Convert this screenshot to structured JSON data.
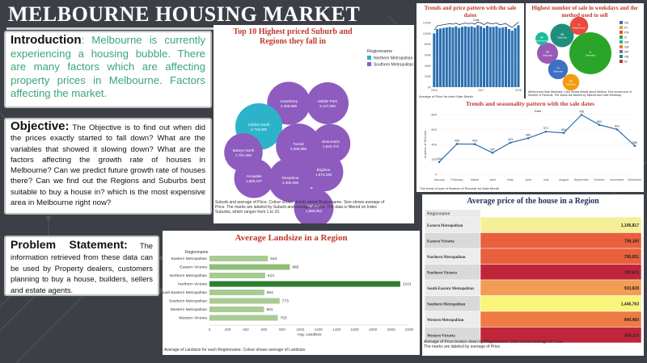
{
  "page": {
    "title": "MELBOURNE HOUSING MARKET",
    "introduction": {
      "heading": "Introduction",
      "text": ": Melbourne is currently experiencing a housing bubble. There are many factors which are affecting property prices in Melbourne. Factors affecting the market."
    },
    "objective": {
      "heading": "Objective:",
      "text": " The Objective is to find out when did the prices exactly started to fall down? What are the variables that showed it slowing down? What are the factors affecting the growth rate of houses in Melbourne? Can we predict future growth rate of houses there? Can we find out the Regions and Suburbs best suitable to buy a house in? which is the most expensive area in Melbourne right now?"
    },
    "problem": {
      "heading": "Problem Statement:",
      "text": " The information retrieved from these data can be used by Property dealers, customers planning to buy a house, builders, sellers and estate agents."
    }
  },
  "colors": {
    "background": "#3c4046",
    "blue": "#2b6fb0",
    "purple": "#8e5bbf",
    "teal": "#2cb3c9",
    "green_dark": "#2e7d32",
    "green_light": "#a4c88e"
  },
  "chart_data": [
    {
      "id": "suburbs",
      "type": "bubble",
      "title": "Top 10 Highest priced Suburb and Regions they fall in",
      "legend_title": "Regionname",
      "legend": [
        {
          "name": "Northern Metropolitan",
          "color": "#2cb3c9"
        },
        {
          "name": "Southern Metropolitan",
          "color": "#8e5bbf"
        }
      ],
      "bubbles": [
        {
          "suburb": "Canterbury",
          "value": "2,268,695",
          "region": "Southern Metropolitan"
        },
        {
          "suburb": "Middle Park",
          "value": "2,147,500",
          "region": "Southern Metropolitan"
        },
        {
          "suburb": "Carlton North",
          "value": "2,719,000",
          "region": "Northern Metropolitan"
        },
        {
          "suburb": "Toorak",
          "value": "2,485,996",
          "region": "Southern Metropolitan"
        },
        {
          "suburb": "Beaumaris",
          "value": "1,842,472",
          "region": "Southern Metropolitan"
        },
        {
          "suburb": "Balwyn North",
          "value": "1,767,266",
          "region": "Southern Metropolitan"
        },
        {
          "suburb": "Armadale",
          "value": "1,880,327",
          "region": "Southern Metropolitan"
        },
        {
          "suburb": "Deepdene",
          "value": "2,380,000",
          "region": "Southern Metropolitan"
        },
        {
          "suburb": "Brighton",
          "value": "1,874,338",
          "region": "Southern Metropolitan"
        },
        {
          "suburb": "Malvern",
          "value": "1,869,053",
          "region": "Southern Metropolitan"
        }
      ],
      "footnote": "Suburb and average of Price. Colour shows details about Regionname. Size shows average of Price. The marks are labeled by Suburb and average of Price. The data is filtered on Index Suburbs, which ranges from 1 to 10."
    },
    {
      "id": "trend",
      "type": "bar+line",
      "title": "Trends and price pattern with the sale dates",
      "legend_label": "Date",
      "x": [
        "2016",
        "",
        "",
        "",
        "",
        "",
        "",
        "",
        "",
        "",
        "",
        "",
        "",
        "",
        "",
        "2017",
        "",
        "",
        "",
        "",
        "",
        "",
        "",
        "",
        "",
        "",
        "",
        "2018"
      ],
      "values": [
        1000000,
        1080000,
        1090000,
        1100000,
        1110000,
        1120000,
        1110000,
        1130000,
        1100000,
        1120000,
        1130000,
        1120000,
        1130000,
        1110000,
        1150000,
        1130000,
        1100000,
        1140000,
        1120000,
        1120000,
        1130000,
        1100000,
        1110000,
        1120000,
        1080000,
        1050000,
        1100000,
        1150000
      ],
      "ylim": [
        0,
        1200000
      ],
      "yticks": [
        "1200K",
        "1000K",
        "800K",
        "600K",
        "400K",
        "200K",
        "0K"
      ],
      "footnote": "Average of Price for each Date Month."
    },
    {
      "id": "weekdays",
      "type": "bubble",
      "title": "Highest number of sale in weekdays and the method used to sell",
      "bubbles": [
        {
          "label": "S",
          "sub": "Saturday",
          "color": "#2aa52a",
          "n": 16000
        },
        {
          "label": "VB",
          "sub": "Saturday",
          "color": "#1e8f7a",
          "n": 5000
        },
        {
          "label": "SP",
          "sub": "Saturday",
          "color": "#9b59b6",
          "n": 4000
        },
        {
          "label": "PI",
          "sub": "Saturday",
          "color": "#3d6fc4",
          "n": 3500
        },
        {
          "label": "SP",
          "sub": "Saturday",
          "color": "#f39c12",
          "n": 2500
        },
        {
          "label": "S",
          "sub": "Wednesday",
          "color": "#e74c3c",
          "n": 3000
        },
        {
          "label": "SP",
          "sub": "Wednesday",
          "color": "#1abc9c",
          "n": 1500
        }
      ],
      "legend": [
        "SS",
        "PI",
        "PN",
        "S",
        "SA",
        "SN",
        "SP",
        "VB",
        "W"
      ],
      "footnote": "Method and Date Weekday. Color shows details about Method. Size shows sum of Number of Records. The marks are labeled by Method and Date Weekday."
    },
    {
      "id": "seasonality",
      "type": "line",
      "title": "Trends and seasonality pattern with the sale dates",
      "legend_label": "Date",
      "categories": [
        "January",
        "February",
        "March",
        "April",
        "May",
        "June",
        "July",
        "August",
        "September",
        "October",
        "November",
        "December"
      ],
      "values": [
        164,
        406,
        403,
        287,
        423,
        483,
        571,
        554,
        796,
        662,
        601,
        380
      ],
      "ylabel": "Number of Records",
      "ylim": [
        0,
        800
      ],
      "yticks": [
        "800",
        "600",
        "400",
        "200",
        "0"
      ],
      "footnote": "The trend of sum of Number of Records for Date Month."
    },
    {
      "id": "landsize",
      "type": "bar",
      "orientation": "horizontal",
      "title": "Average Landsize in a Region",
      "ylabel": "Regionname",
      "xlabel": "Avg. Landsize",
      "categories": [
        "Eastern Metropolitan",
        "Eastern Victoria",
        "Northern Metropolitan",
        "Northern Victoria",
        "South-Eastern Metropolitan",
        "Southern Metropolitan",
        "Western Metropolitan",
        "Western Victoria"
      ],
      "values": [
        644,
        885,
        614,
        2101,
        604,
        773,
        601,
        753
      ],
      "xlim": [
        0,
        2200
      ],
      "xticks": [
        "0",
        "200",
        "400",
        "600",
        "800",
        "1000",
        "1200",
        "1400",
        "1600",
        "1800",
        "2000",
        "2200"
      ],
      "footnote": "Average of Landsize for each Regionname. Colour shows average of Landsize."
    },
    {
      "id": "avgprice",
      "type": "table",
      "title": "Average price of the house in a Region",
      "header": "Regionname",
      "rows": [
        {
          "region": "Eastern Metropolitan",
          "value": "1,106,817",
          "color": "#f6ef9a"
        },
        {
          "region": "Eastern Victoria",
          "value": "798,160",
          "color": "#e8603c"
        },
        {
          "region": "Northern Metropolitan",
          "value": "795,051",
          "color": "#e8603c"
        },
        {
          "region": "Northern Victoria",
          "value": "707,671",
          "color": "#c0263a"
        },
        {
          "region": "South-Eastern Metropolitan",
          "value": "933,828",
          "color": "#f39c55"
        },
        {
          "region": "Southern Metropolitan",
          "value": "1,446,763",
          "color": "#f9f57c"
        },
        {
          "region": "Western Metropolitan",
          "value": "840,460",
          "color": "#ee7a44"
        },
        {
          "region": "Western Victoria",
          "value": "516,113",
          "color": "#c0263a"
        }
      ],
      "footnote": "Average of Price broken down by Regionname. Color shows average of Price. The marks are labeled by average of Price."
    }
  ]
}
